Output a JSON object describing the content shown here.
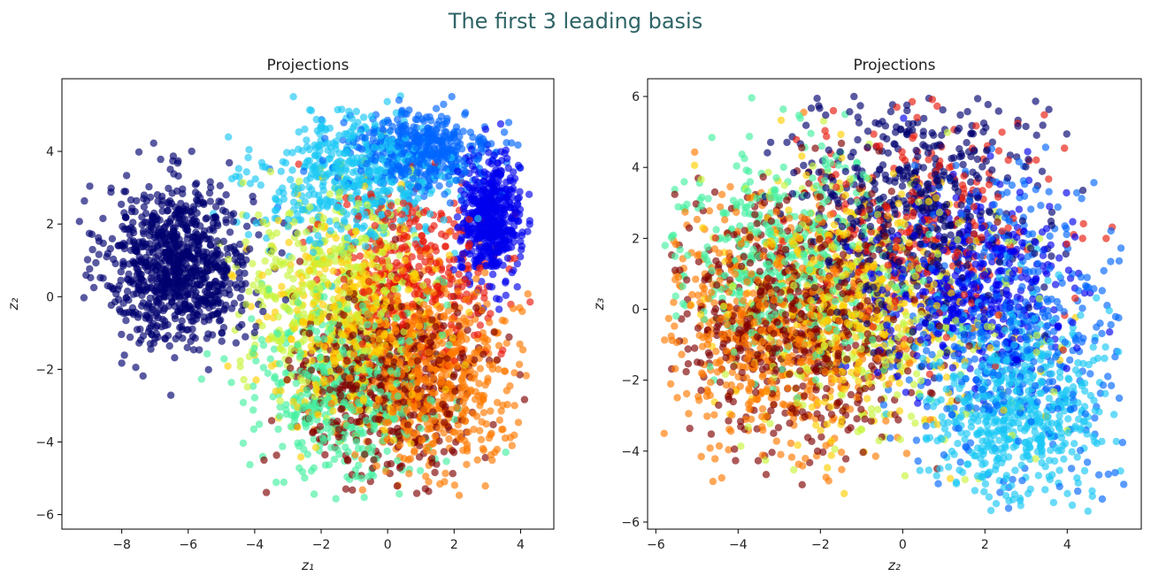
{
  "page": {
    "title": "The first 3 leading basis"
  },
  "chart_data": [
    {
      "type": "scatter",
      "title": "Projections",
      "xlabel": "z₁",
      "ylabel": "z₂",
      "xlim": [
        -9.8,
        5.0
      ],
      "ylim": [
        -6.4,
        6.0
      ],
      "xticks": [
        -8,
        -6,
        -4,
        -2,
        0,
        2,
        4
      ],
      "yticks": [
        -6,
        -4,
        -2,
        0,
        2,
        4
      ],
      "xtick_labels": [
        "−8",
        "−6",
        "−4",
        "−2",
        "0",
        "2",
        "4"
      ],
      "ytick_labels": [
        "−6",
        "−4",
        "−2",
        "0",
        "2",
        "4"
      ],
      "grid": false,
      "legend": "none",
      "marker_alpha": 0.65,
      "series": [
        {
          "color": "#00006f",
          "cx": -6.3,
          "cy": 0.9,
          "sx": 1.1,
          "sy": 1.1,
          "n": 900,
          "rmin": -9.3,
          "rmax": 4.3,
          "zmin": -5.6,
          "zmax": 5.6
        },
        {
          "color": "#0000ee",
          "cx": 3.1,
          "cy": 2.1,
          "sx": 0.45,
          "sy": 0.8,
          "n": 550,
          "rmin": -9.3,
          "rmax": 4.3,
          "zmin": -5.6,
          "zmax": 5.6
        },
        {
          "color": "#0066ff",
          "cx": 1.0,
          "cy": 4.0,
          "sx": 1.1,
          "sy": 0.55,
          "n": 450,
          "rmin": -9.3,
          "rmax": 4.3,
          "zmin": -5.6,
          "zmax": 5.6
        },
        {
          "color": "#19c8f5",
          "cx": -1.0,
          "cy": 3.2,
          "sx": 1.4,
          "sy": 0.9,
          "n": 500,
          "rmin": -9.3,
          "rmax": 4.3,
          "zmin": -5.6,
          "zmax": 5.6
        },
        {
          "color": "#44f0a0",
          "cx": -1.3,
          "cy": -2.4,
          "sx": 1.3,
          "sy": 1.4,
          "n": 500,
          "rmin": -9.3,
          "rmax": 4.3,
          "zmin": -5.6,
          "zmax": 5.6
        },
        {
          "color": "#c8f53a",
          "cx": -1.8,
          "cy": 0.3,
          "sx": 1.3,
          "sy": 1.4,
          "n": 380,
          "rmin": -9.3,
          "rmax": 4.3,
          "zmin": -5.6,
          "zmax": 5.6
        },
        {
          "color": "#ffd000",
          "cx": -1.0,
          "cy": -0.6,
          "sx": 1.3,
          "sy": 1.4,
          "n": 420,
          "rmin": -9.3,
          "rmax": 4.3,
          "zmin": -5.6,
          "zmax": 5.6
        },
        {
          "color": "#ff7a00",
          "cx": 1.3,
          "cy": -2.1,
          "sx": 1.3,
          "sy": 1.3,
          "n": 650,
          "rmin": -9.3,
          "rmax": 4.3,
          "zmin": -5.6,
          "zmax": 5.6
        },
        {
          "color": "#e8180a",
          "cx": 0.9,
          "cy": 0.7,
          "sx": 1.2,
          "sy": 1.2,
          "n": 320,
          "rmin": -9.3,
          "rmax": 4.3,
          "zmin": -5.6,
          "zmax": 5.6
        },
        {
          "color": "#800000",
          "cx": 0.0,
          "cy": -2.3,
          "sx": 1.4,
          "sy": 1.3,
          "n": 520,
          "rmin": -9.3,
          "rmax": 4.3,
          "zmin": -5.6,
          "zmax": 5.6
        }
      ]
    },
    {
      "type": "scatter",
      "title": "Projections",
      "xlabel": "z₂",
      "ylabel": "z₃",
      "xlim": [
        -6.2,
        5.8
      ],
      "ylim": [
        -6.2,
        6.5
      ],
      "xticks": [
        -6,
        -4,
        -2,
        0,
        2,
        4
      ],
      "yticks": [
        -6,
        -4,
        -2,
        0,
        2,
        4,
        6
      ],
      "xtick_labels": [
        "−6",
        "−4",
        "−2",
        "0",
        "2",
        "4"
      ],
      "ytick_labels": [
        "−6",
        "−4",
        "−2",
        "0",
        "2",
        "4",
        "6"
      ],
      "grid": false,
      "legend": "none",
      "marker_alpha": 0.65,
      "series": [
        {
          "color": "#44f0a0",
          "cx": -3.0,
          "cy": 1.5,
          "sx": 1.4,
          "sy": 1.6,
          "n": 420,
          "rmin": -5.8,
          "rmax": 5.4,
          "zmin": -5.7,
          "zmax": 6.0
        },
        {
          "color": "#00006f",
          "cx": 0.3,
          "cy": 3.0,
          "sx": 1.4,
          "sy": 1.8,
          "n": 500,
          "rmin": -5.8,
          "rmax": 5.4,
          "zmin": -5.7,
          "zmax": 6.0
        },
        {
          "color": "#0000ee",
          "cx": 1.6,
          "cy": 0.7,
          "sx": 1.2,
          "sy": 1.3,
          "n": 450,
          "rmin": -5.8,
          "rmax": 5.4,
          "zmin": -5.7,
          "zmax": 6.0
        },
        {
          "color": "#0066ff",
          "cx": 2.7,
          "cy": -0.6,
          "sx": 1.4,
          "sy": 2.0,
          "n": 460,
          "rmin": -5.8,
          "rmax": 5.4,
          "zmin": -5.7,
          "zmax": 6.0
        },
        {
          "color": "#c8f53a",
          "cx": -0.5,
          "cy": -0.2,
          "sx": 1.8,
          "sy": 2.0,
          "n": 280,
          "rmin": -5.8,
          "rmax": 5.4,
          "zmin": -5.7,
          "zmax": 6.0
        },
        {
          "color": "#ffd000",
          "cx": -1.2,
          "cy": 0.2,
          "sx": 1.6,
          "sy": 1.8,
          "n": 380,
          "rmin": -5.8,
          "rmax": 5.4,
          "zmin": -5.7,
          "zmax": 6.0
        },
        {
          "color": "#e8180a",
          "cx": 0.6,
          "cy": 2.3,
          "sx": 1.6,
          "sy": 1.5,
          "n": 260,
          "rmin": -5.8,
          "rmax": 5.4,
          "zmin": -5.7,
          "zmax": 6.0
        },
        {
          "color": "#ff7a00",
          "cx": -3.2,
          "cy": -0.6,
          "sx": 1.4,
          "sy": 1.7,
          "n": 560,
          "rmin": -5.8,
          "rmax": 5.4,
          "zmin": -5.7,
          "zmax": 6.0
        },
        {
          "color": "#800000",
          "cx": -2.6,
          "cy": -0.2,
          "sx": 1.5,
          "sy": 1.8,
          "n": 620,
          "rmin": -5.8,
          "rmax": 5.4,
          "zmin": -5.7,
          "zmax": 6.0
        },
        {
          "color": "#19c8f5",
          "cx": 2.8,
          "cy": -2.8,
          "sx": 1.1,
          "sy": 1.3,
          "n": 560,
          "rmin": -5.8,
          "rmax": 5.4,
          "zmin": -5.7,
          "zmax": 6.0
        }
      ]
    }
  ]
}
